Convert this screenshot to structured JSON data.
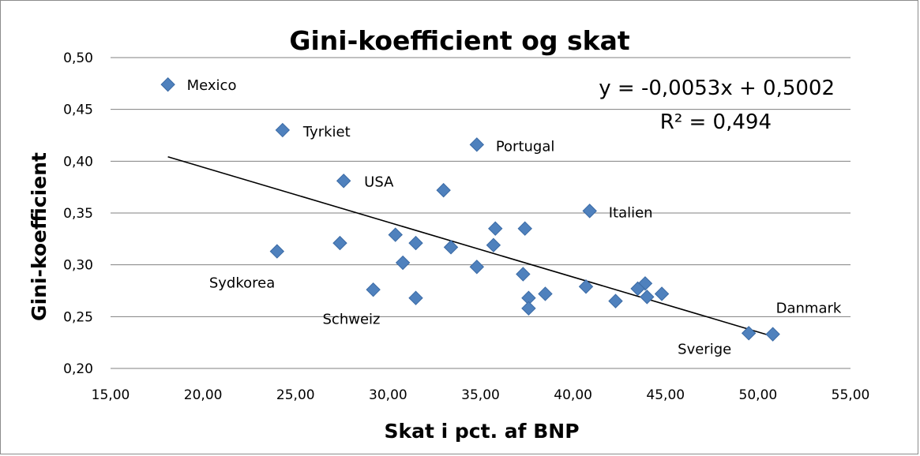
{
  "chart_data": {
    "type": "scatter",
    "title": "Gini-koefficient og skat",
    "xlabel": "Skat i pct. af BNP",
    "ylabel": "Gini-koefficient",
    "xlim": [
      15,
      55
    ],
    "ylim": [
      0.2,
      0.5
    ],
    "xticks": [
      "15,00",
      "20,00",
      "25,00",
      "30,00",
      "35,00",
      "40,00",
      "45,00",
      "50,00",
      "55,00"
    ],
    "yticks": [
      "0,20",
      "0,25",
      "0,30",
      "0,35",
      "0,40",
      "0,45",
      "0,50"
    ],
    "grid": "horizontal",
    "marker_color": "#4f81bd",
    "points": [
      {
        "x": 18.1,
        "y": 0.474,
        "label": "Mexico"
      },
      {
        "x": 24.3,
        "y": 0.43,
        "label": "Tyrkiet"
      },
      {
        "x": 34.8,
        "y": 0.416,
        "label": "Portugal"
      },
      {
        "x": 27.6,
        "y": 0.381,
        "label": "USA"
      },
      {
        "x": 33.0,
        "y": 0.372,
        "label": ""
      },
      {
        "x": 40.9,
        "y": 0.352,
        "label": "Italien"
      },
      {
        "x": 35.8,
        "y": 0.335,
        "label": ""
      },
      {
        "x": 37.4,
        "y": 0.335,
        "label": ""
      },
      {
        "x": 30.4,
        "y": 0.329,
        "label": ""
      },
      {
        "x": 27.4,
        "y": 0.321,
        "label": ""
      },
      {
        "x": 31.5,
        "y": 0.321,
        "label": ""
      },
      {
        "x": 35.7,
        "y": 0.319,
        "label": ""
      },
      {
        "x": 33.4,
        "y": 0.317,
        "label": ""
      },
      {
        "x": 24.0,
        "y": 0.313,
        "label": "Sydkorea"
      },
      {
        "x": 30.8,
        "y": 0.302,
        "label": ""
      },
      {
        "x": 34.8,
        "y": 0.298,
        "label": ""
      },
      {
        "x": 37.3,
        "y": 0.291,
        "label": ""
      },
      {
        "x": 43.9,
        "y": 0.282,
        "label": ""
      },
      {
        "x": 40.7,
        "y": 0.279,
        "label": ""
      },
      {
        "x": 43.5,
        "y": 0.277,
        "label": ""
      },
      {
        "x": 29.2,
        "y": 0.276,
        "label": ""
      },
      {
        "x": 38.5,
        "y": 0.272,
        "label": ""
      },
      {
        "x": 44.8,
        "y": 0.272,
        "label": ""
      },
      {
        "x": 44.0,
        "y": 0.269,
        "label": ""
      },
      {
        "x": 31.5,
        "y": 0.268,
        "label": "Schweiz"
      },
      {
        "x": 37.6,
        "y": 0.268,
        "label": ""
      },
      {
        "x": 42.3,
        "y": 0.265,
        "label": ""
      },
      {
        "x": 37.6,
        "y": 0.258,
        "label": ""
      },
      {
        "x": 49.5,
        "y": 0.234,
        "label": "Sverige"
      },
      {
        "x": 50.8,
        "y": 0.233,
        "label": "Danmark"
      }
    ],
    "trendline": {
      "slope": -0.0053,
      "intercept": 0.5002,
      "x_range": [
        18.1,
        50.8
      ],
      "equation": "y = -0,0053x + 0,5002",
      "r_squared": "R² = 0,494"
    }
  }
}
